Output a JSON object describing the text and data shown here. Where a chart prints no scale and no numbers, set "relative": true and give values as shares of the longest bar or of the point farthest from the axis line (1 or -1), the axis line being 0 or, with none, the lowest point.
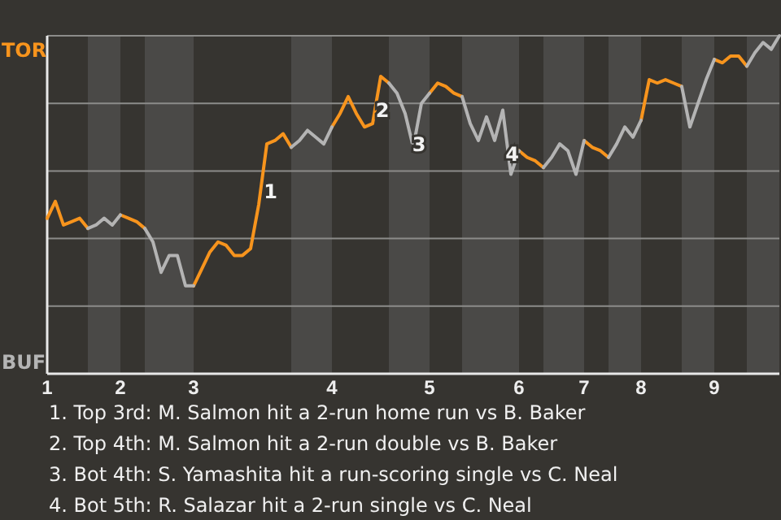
{
  "chart_data": {
    "type": "line",
    "categories": [
      "1",
      null,
      null,
      null,
      null,
      null,
      null,
      null,
      null,
      "2",
      null,
      null,
      null,
      null,
      null,
      null,
      null,
      null,
      "3",
      null,
      null,
      null,
      null,
      null,
      null,
      null,
      null,
      null,
      null,
      null,
      null,
      null,
      null,
      null,
      null,
      "4",
      null,
      null,
      null,
      null,
      null,
      null,
      null,
      null,
      null,
      null,
      null,
      "5",
      null,
      null,
      null,
      null,
      null,
      null,
      null,
      null,
      null,
      null,
      "6",
      null,
      null,
      null,
      null,
      null,
      null,
      null,
      "7",
      null,
      null,
      null,
      null,
      null,
      null,
      "8",
      null,
      null,
      null,
      null,
      null,
      null,
      null,
      null,
      "9",
      null,
      null,
      null,
      null,
      null,
      null,
      null,
      null
    ],
    "relative": true,
    "series": [
      {
        "color": "#f7941d",
        "values": [
          0.46,
          0.51,
          0.44,
          0.45,
          0.46,
          0.43,
          null,
          null,
          null,
          0.47,
          0.46,
          0.45,
          0.43,
          null,
          null,
          null,
          null,
          null,
          0.26,
          0.31,
          0.36,
          0.39,
          0.38,
          0.35,
          0.35,
          0.37,
          0.5,
          0.68,
          0.69,
          0.71,
          0.67,
          null,
          null,
          null,
          null,
          0.73,
          0.77,
          0.82,
          0.77,
          0.73,
          0.74,
          0.88,
          0.86,
          null,
          null,
          null,
          null,
          0.83,
          0.86,
          0.85,
          0.83,
          0.82,
          null,
          null,
          null,
          null,
          null,
          null,
          0.66,
          0.64,
          0.63,
          0.61,
          null,
          null,
          null,
          null,
          0.69,
          0.67,
          0.66,
          0.64,
          null,
          null,
          null,
          0.75,
          0.87,
          0.86,
          0.87,
          0.86,
          0.85,
          null,
          null,
          null,
          0.93,
          0.92,
          0.94,
          0.94,
          0.91,
          null,
          null,
          null,
          null
        ]
      },
      {
        "color": "#b4b4b4",
        "values": [
          null,
          null,
          null,
          null,
          null,
          0.43,
          0.44,
          0.46,
          0.44,
          0.47,
          null,
          null,
          0.43,
          0.39,
          0.3,
          0.35,
          0.35,
          0.26,
          0.26,
          null,
          null,
          null,
          null,
          null,
          null,
          null,
          null,
          null,
          null,
          null,
          0.67,
          0.69,
          0.72,
          0.7,
          0.68,
          0.73,
          null,
          null,
          null,
          null,
          null,
          null,
          0.86,
          0.83,
          0.77,
          0.67,
          0.8,
          0.83,
          null,
          null,
          null,
          0.82,
          0.74,
          0.69,
          0.76,
          0.69,
          0.78,
          0.59,
          0.66,
          null,
          null,
          0.61,
          0.64,
          0.68,
          0.66,
          0.59,
          0.69,
          null,
          null,
          0.64,
          0.68,
          0.73,
          0.7,
          0.75,
          null,
          null,
          null,
          null,
          0.85,
          0.73,
          0.8,
          0.87,
          0.93,
          null,
          null,
          null,
          0.91,
          0.95,
          0.98,
          0.96,
          1
        ]
      }
    ],
    "grid": "y",
    "line_style": "solid",
    "annotations": [
      "TOR",
      "BUF",
      "1",
      "2",
      "3",
      "4",
      "1. Top 3rd: M. Salmon hit a 2-run home run vs B. Baker",
      "2. Top 4th: M. Salmon hit a 2-run double vs B. Baker",
      "3. Bot 4th: S. Yamashita hit a run-scoring single vs C. Neal",
      "4. Bot 5th: R. Salazar hit a 2-run single vs C. Neal"
    ]
  }
}
